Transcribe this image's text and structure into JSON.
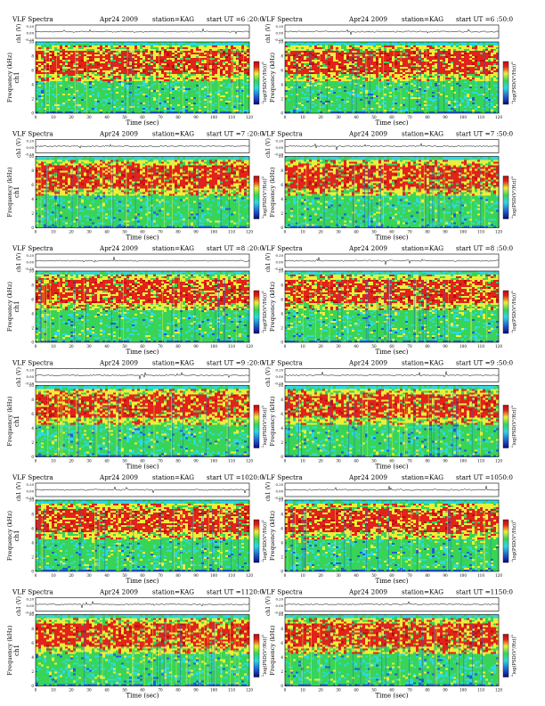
{
  "page": {
    "header_title": "VLF Spectra",
    "header_date": "Apr24 2009",
    "header_station": "station=KAG",
    "header_start_prefix": "start  UT =",
    "x_axis_label": "Time  (sec)",
    "x_ticks": [
      "0",
      "10",
      "20",
      "30",
      "40",
      "50",
      "60",
      "70",
      "80",
      "90",
      "100",
      "110",
      "120"
    ],
    "wave_label": "ch1 (V)",
    "wave_ticks": [
      "0.20",
      "0.00",
      "-0.20"
    ],
    "spec_label_line1": "ch1",
    "spec_label_line2": "Frequency  (kHz)",
    "spec_label_right": "Frequency  (kHz)",
    "y_ticks": [
      "10",
      "8",
      "6",
      "4",
      "2",
      "0"
    ],
    "colorbar_label": "log(PSD(V²/Hz))",
    "colorbar_ticks": [
      "-5",
      "-7"
    ]
  },
  "chart_data": [
    {
      "type": "heatmap",
      "header_title": "VLF Spectra",
      "date": "Apr24 2009",
      "station": "station=KAG",
      "start_ut": "6 :20:0",
      "x_range": [
        0,
        120
      ],
      "y_range_khz": [
        0,
        10
      ],
      "wave_ylim": [
        -0.2,
        0.2
      ],
      "colorbar_range": [
        -7,
        -5
      ]
    },
    {
      "type": "heatmap",
      "header_title": "VLF Spectra",
      "date": "Apr24 2009",
      "station": "station=KAG",
      "start_ut": "6 :50:0",
      "x_range": [
        0,
        120
      ],
      "y_range_khz": [
        0,
        10
      ],
      "wave_ylim": [
        -0.2,
        0.2
      ],
      "colorbar_range": [
        -7,
        -5
      ]
    },
    {
      "type": "heatmap",
      "header_title": "VLF Spectra",
      "date": "Apr24 2009",
      "station": "station=KAG",
      "start_ut": "7 :20:0",
      "x_range": [
        0,
        120
      ],
      "y_range_khz": [
        0,
        10
      ],
      "wave_ylim": [
        -0.2,
        0.2
      ],
      "colorbar_range": [
        -7,
        -5
      ]
    },
    {
      "type": "heatmap",
      "header_title": "VLF Spectra",
      "date": "Apr24 2009",
      "station": "station=KAG",
      "start_ut": "7 :50:0",
      "x_range": [
        0,
        120
      ],
      "y_range_khz": [
        0,
        10
      ],
      "wave_ylim": [
        -0.2,
        0.2
      ],
      "colorbar_range": [
        -7,
        -5
      ]
    },
    {
      "type": "heatmap",
      "header_title": "VLF Spectra",
      "date": "Apr24 2009",
      "station": "station=KAG",
      "start_ut": "8 :20:0",
      "x_range": [
        0,
        120
      ],
      "y_range_khz": [
        0,
        10
      ],
      "wave_ylim": [
        -0.2,
        0.2
      ],
      "colorbar_range": [
        -7,
        -5
      ]
    },
    {
      "type": "heatmap",
      "header_title": "VLF Spectra",
      "date": "Apr24 2009",
      "station": "station=KAG",
      "start_ut": "8 :50:0",
      "x_range": [
        0,
        120
      ],
      "y_range_khz": [
        0,
        10
      ],
      "wave_ylim": [
        -0.2,
        0.2
      ],
      "colorbar_range": [
        -7,
        -5
      ]
    },
    {
      "type": "heatmap",
      "header_title": "VLF Spectra",
      "date": "Apr24 2009",
      "station": "station=KAG",
      "start_ut": "9 :20:0",
      "x_range": [
        0,
        120
      ],
      "y_range_khz": [
        0,
        10
      ],
      "wave_ylim": [
        -0.2,
        0.2
      ],
      "colorbar_range": [
        -7,
        -5
      ]
    },
    {
      "type": "heatmap",
      "header_title": "VLF Spectra",
      "date": "Apr24 2009",
      "station": "station=KAG",
      "start_ut": "9 :50:0",
      "x_range": [
        0,
        120
      ],
      "y_range_khz": [
        0,
        10
      ],
      "wave_ylim": [
        -0.2,
        0.2
      ],
      "colorbar_range": [
        -7,
        -5
      ]
    },
    {
      "type": "heatmap",
      "header_title": "VLF Spectra",
      "date": "Apr24 2009",
      "station": "station=KAG",
      "start_ut": "1020:0",
      "x_range": [
        0,
        120
      ],
      "y_range_khz": [
        0,
        10
      ],
      "wave_ylim": [
        -0.2,
        0.2
      ],
      "colorbar_range": [
        -7,
        -5
      ]
    },
    {
      "type": "heatmap",
      "header_title": "VLF Spectra",
      "date": "Apr24 2009",
      "station": "station=KAG",
      "start_ut": "1050:0",
      "x_range": [
        0,
        120
      ],
      "y_range_khz": [
        0,
        10
      ],
      "wave_ylim": [
        -0.2,
        0.2
      ],
      "colorbar_range": [
        -7,
        -5
      ]
    },
    {
      "type": "heatmap",
      "header_title": "VLF Spectra",
      "date": "Apr24 2009",
      "station": "station=KAG",
      "start_ut": "1120:0",
      "x_range": [
        0,
        120
      ],
      "y_range_khz": [
        0,
        10
      ],
      "wave_ylim": [
        -0.2,
        0.2
      ],
      "colorbar_range": [
        -7,
        -5
      ]
    },
    {
      "type": "heatmap",
      "header_title": "VLF Spectra",
      "date": "Apr24 2009",
      "station": "station=KAG",
      "start_ut": "1150:0",
      "x_range": [
        0,
        120
      ],
      "y_range_khz": [
        0,
        10
      ],
      "wave_ylim": [
        -0.2,
        0.2
      ],
      "colorbar_range": [
        -7,
        -5
      ]
    }
  ],
  "colors": {
    "blue": "#1f5fd0",
    "cyan": "#2fd8e0",
    "green": "#37d458",
    "yellow": "#ecef3a",
    "red": "#e3221b",
    "darkred": "#b70f10",
    "navy": "#0a0a7a"
  }
}
